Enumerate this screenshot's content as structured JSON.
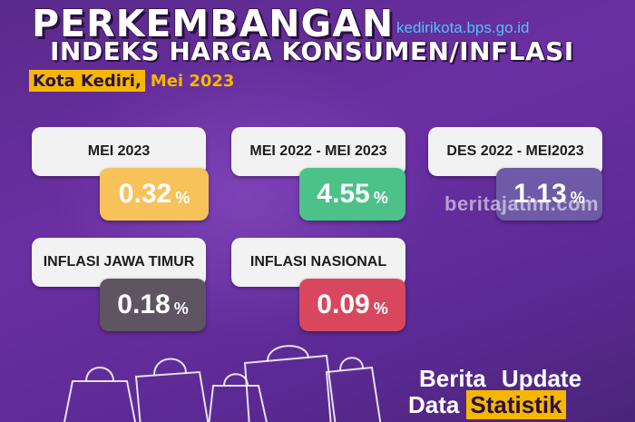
{
  "header": {
    "title_line1": "PERKEMBANGAN",
    "website": "kedirikota.bps.go.id",
    "title_line2": "INDEKS HARGA KONSUMEN/INFLASI",
    "city": "Kota Kediri,",
    "period": "Mei 2023"
  },
  "cards": [
    {
      "label": "MEI 2023",
      "value": "0.32",
      "unit": "%",
      "color": "#f7c25a"
    },
    {
      "label": "MEI 2022 - MEI 2023",
      "value": "4.55",
      "unit": "%",
      "color": "#4cc28a"
    },
    {
      "label": "DES 2022 - MEI2023",
      "value": "1.13",
      "unit": "%",
      "color": "#6f5aa8"
    },
    {
      "label": "INFLASI JAWA TIMUR",
      "value": "0.18",
      "unit": "%",
      "color": "#5e5462"
    },
    {
      "label": "INFLASI NASIONAL",
      "value": "0.09",
      "unit": "%",
      "color": "#d9475e"
    }
  ],
  "watermark": "beritajatim.com",
  "footer": {
    "line1": "Berita Update",
    "line2_prefix": "Data",
    "line2_highlight": "Statistik"
  },
  "colors": {
    "accent": "#f5b700",
    "background": "#5b2a94"
  }
}
